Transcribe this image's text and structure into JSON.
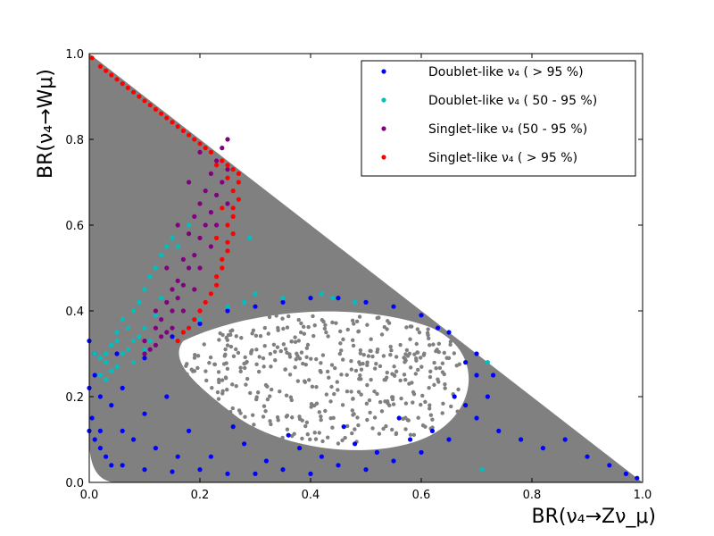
{
  "chart_data": {
    "type": "scatter",
    "xlabel": "BR(ν₄→Zν_μ)",
    "ylabel": "BR(ν₄→Wμ)",
    "xlim": [
      0.0,
      1.0
    ],
    "ylim": [
      0.0,
      1.0
    ],
    "x_ticks": [
      "0.0",
      "0.2",
      "0.4",
      "0.6",
      "0.8",
      "1.0"
    ],
    "y_ticks": [
      "0.0",
      "0.2",
      "0.4",
      "0.6",
      "0.8",
      "1.0"
    ],
    "legend_position": "top-right",
    "grid": false,
    "series": [
      {
        "name": "Doublet-like ν₄ ( > 95 %)",
        "color": "#0000ff",
        "points": [
          [
            0.0,
            0.33
          ],
          [
            0.01,
            0.25
          ],
          [
            0.005,
            0.15
          ],
          [
            0.01,
            0.1
          ],
          [
            0.03,
            0.06
          ],
          [
            0.06,
            0.04
          ],
          [
            0.1,
            0.03
          ],
          [
            0.15,
            0.025
          ],
          [
            0.2,
            0.03
          ],
          [
            0.25,
            0.02
          ],
          [
            0.3,
            0.02
          ],
          [
            0.35,
            0.03
          ],
          [
            0.4,
            0.02
          ],
          [
            0.45,
            0.04
          ],
          [
            0.5,
            0.03
          ],
          [
            0.55,
            0.05
          ],
          [
            0.6,
            0.07
          ],
          [
            0.65,
            0.1
          ],
          [
            0.7,
            0.15
          ],
          [
            0.72,
            0.2
          ],
          [
            0.73,
            0.25
          ],
          [
            0.7,
            0.3
          ],
          [
            0.65,
            0.35
          ],
          [
            0.6,
            0.39
          ],
          [
            0.55,
            0.41
          ],
          [
            0.5,
            0.42
          ],
          [
            0.45,
            0.43
          ],
          [
            0.4,
            0.43
          ],
          [
            0.35,
            0.42
          ],
          [
            0.3,
            0.41
          ],
          [
            0.25,
            0.4
          ],
          [
            0.2,
            0.37
          ],
          [
            0.15,
            0.34
          ],
          [
            0.1,
            0.29
          ],
          [
            0.06,
            0.22
          ],
          [
            0.04,
            0.18
          ],
          [
            0.02,
            0.12
          ],
          [
            0.08,
            0.1
          ],
          [
            0.12,
            0.08
          ],
          [
            0.18,
            0.12
          ],
          [
            0.22,
            0.06
          ],
          [
            0.28,
            0.09
          ],
          [
            0.32,
            0.05
          ],
          [
            0.38,
            0.08
          ],
          [
            0.42,
            0.06
          ],
          [
            0.48,
            0.09
          ],
          [
            0.52,
            0.07
          ],
          [
            0.58,
            0.1
          ],
          [
            0.62,
            0.12
          ],
          [
            0.68,
            0.18
          ],
          [
            0.74,
            0.12
          ],
          [
            0.78,
            0.1
          ],
          [
            0.82,
            0.08
          ],
          [
            0.86,
            0.1
          ],
          [
            0.9,
            0.06
          ],
          [
            0.94,
            0.04
          ],
          [
            0.97,
            0.02
          ],
          [
            0.99,
            0.01
          ],
          [
            0.05,
            0.3
          ],
          [
            0.02,
            0.2
          ],
          [
            0.14,
            0.2
          ],
          [
            0.1,
            0.16
          ],
          [
            0.06,
            0.12
          ],
          [
            0.16,
            0.06
          ],
          [
            0.26,
            0.13
          ],
          [
            0.36,
            0.11
          ],
          [
            0.46,
            0.13
          ],
          [
            0.56,
            0.15
          ],
          [
            0.66,
            0.2
          ],
          [
            0.7,
            0.25
          ],
          [
            0.68,
            0.28
          ],
          [
            0.63,
            0.36
          ],
          [
            0.01,
            0.3
          ],
          [
            0.0,
            0.22
          ],
          [
            0.0,
            0.12
          ],
          [
            0.02,
            0.08
          ],
          [
            0.04,
            0.04
          ]
        ]
      },
      {
        "name": "Doublet-like ν₄ ( 50 - 95 %)",
        "color": "#00bfbf",
        "points": [
          [
            0.01,
            0.3
          ],
          [
            0.02,
            0.25
          ],
          [
            0.03,
            0.28
          ],
          [
            0.04,
            0.32
          ],
          [
            0.05,
            0.35
          ],
          [
            0.06,
            0.38
          ],
          [
            0.07,
            0.36
          ],
          [
            0.08,
            0.4
          ],
          [
            0.09,
            0.42
          ],
          [
            0.1,
            0.45
          ],
          [
            0.11,
            0.48
          ],
          [
            0.12,
            0.5
          ],
          [
            0.13,
            0.53
          ],
          [
            0.14,
            0.55
          ],
          [
            0.15,
            0.57
          ],
          [
            0.16,
            0.55
          ],
          [
            0.18,
            0.6
          ],
          [
            0.05,
            0.27
          ],
          [
            0.03,
            0.24
          ],
          [
            0.06,
            0.3
          ],
          [
            0.08,
            0.33
          ],
          [
            0.1,
            0.36
          ],
          [
            0.02,
            0.29
          ],
          [
            0.04,
            0.26
          ],
          [
            0.07,
            0.31
          ],
          [
            0.09,
            0.34
          ],
          [
            0.12,
            0.39
          ],
          [
            0.28,
            0.42
          ],
          [
            0.3,
            0.44
          ],
          [
            0.35,
            0.43
          ],
          [
            0.42,
            0.44
          ],
          [
            0.44,
            0.43
          ],
          [
            0.48,
            0.42
          ],
          [
            0.2,
            0.38
          ],
          [
            0.25,
            0.41
          ],
          [
            0.29,
            0.57
          ],
          [
            0.72,
            0.28
          ],
          [
            0.71,
            0.03
          ],
          [
            0.1,
            0.31
          ],
          [
            0.05,
            0.33
          ],
          [
            0.03,
            0.3
          ],
          [
            0.08,
            0.28
          ],
          [
            0.11,
            0.33
          ],
          [
            0.13,
            0.43
          ]
        ]
      },
      {
        "name": "Singlet-like ν₄ (50 - 95 %)",
        "color": "#800080",
        "points": [
          [
            0.1,
            0.3
          ],
          [
            0.12,
            0.32
          ],
          [
            0.14,
            0.35
          ],
          [
            0.13,
            0.38
          ],
          [
            0.15,
            0.4
          ],
          [
            0.16,
            0.43
          ],
          [
            0.17,
            0.46
          ],
          [
            0.18,
            0.5
          ],
          [
            0.19,
            0.53
          ],
          [
            0.2,
            0.57
          ],
          [
            0.21,
            0.6
          ],
          [
            0.22,
            0.63
          ],
          [
            0.23,
            0.67
          ],
          [
            0.24,
            0.7
          ],
          [
            0.25,
            0.73
          ],
          [
            0.23,
            0.75
          ],
          [
            0.22,
            0.72
          ],
          [
            0.2,
            0.65
          ],
          [
            0.18,
            0.58
          ],
          [
            0.17,
            0.52
          ],
          [
            0.16,
            0.47
          ],
          [
            0.15,
            0.45
          ],
          [
            0.14,
            0.42
          ],
          [
            0.13,
            0.34
          ],
          [
            0.11,
            0.31
          ],
          [
            0.19,
            0.62
          ],
          [
            0.21,
            0.68
          ],
          [
            0.24,
            0.78
          ],
          [
            0.25,
            0.8
          ],
          [
            0.2,
            0.77
          ],
          [
            0.18,
            0.7
          ],
          [
            0.16,
            0.6
          ],
          [
            0.14,
            0.5
          ],
          [
            0.12,
            0.4
          ],
          [
            0.22,
            0.55
          ],
          [
            0.23,
            0.6
          ],
          [
            0.19,
            0.45
          ],
          [
            0.17,
            0.4
          ],
          [
            0.15,
            0.36
          ],
          [
            0.12,
            0.36
          ],
          [
            0.1,
            0.33
          ],
          [
            0.2,
            0.5
          ],
          [
            0.25,
            0.65
          ]
        ]
      },
      {
        "name": "Singlet-like ν₄ ( > 95 %)",
        "color": "#ff0000",
        "points": [
          [
            0.005,
            0.99
          ],
          [
            0.02,
            0.97
          ],
          [
            0.04,
            0.95
          ],
          [
            0.06,
            0.93
          ],
          [
            0.08,
            0.91
          ],
          [
            0.1,
            0.89
          ],
          [
            0.12,
            0.87
          ],
          [
            0.14,
            0.85
          ],
          [
            0.16,
            0.83
          ],
          [
            0.18,
            0.81
          ],
          [
            0.2,
            0.79
          ],
          [
            0.22,
            0.77
          ],
          [
            0.24,
            0.75
          ],
          [
            0.26,
            0.73
          ],
          [
            0.27,
            0.7
          ],
          [
            0.27,
            0.66
          ],
          [
            0.26,
            0.62
          ],
          [
            0.26,
            0.58
          ],
          [
            0.25,
            0.54
          ],
          [
            0.24,
            0.5
          ],
          [
            0.23,
            0.46
          ],
          [
            0.21,
            0.42
          ],
          [
            0.19,
            0.38
          ],
          [
            0.17,
            0.35
          ],
          [
            0.16,
            0.33
          ],
          [
            0.18,
            0.36
          ],
          [
            0.2,
            0.4
          ],
          [
            0.22,
            0.44
          ],
          [
            0.23,
            0.48
          ],
          [
            0.24,
            0.52
          ],
          [
            0.25,
            0.56
          ],
          [
            0.25,
            0.6
          ],
          [
            0.26,
            0.64
          ],
          [
            0.26,
            0.68
          ],
          [
            0.25,
            0.71
          ],
          [
            0.23,
            0.74
          ],
          [
            0.21,
            0.78
          ],
          [
            0.19,
            0.8
          ],
          [
            0.17,
            0.82
          ],
          [
            0.15,
            0.84
          ],
          [
            0.13,
            0.86
          ],
          [
            0.11,
            0.88
          ],
          [
            0.09,
            0.9
          ],
          [
            0.07,
            0.92
          ],
          [
            0.05,
            0.94
          ],
          [
            0.03,
            0.96
          ],
          [
            0.25,
            0.74
          ],
          [
            0.27,
            0.72
          ],
          [
            0.24,
            0.64
          ],
          [
            0.23,
            0.57
          ]
        ]
      }
    ]
  }
}
